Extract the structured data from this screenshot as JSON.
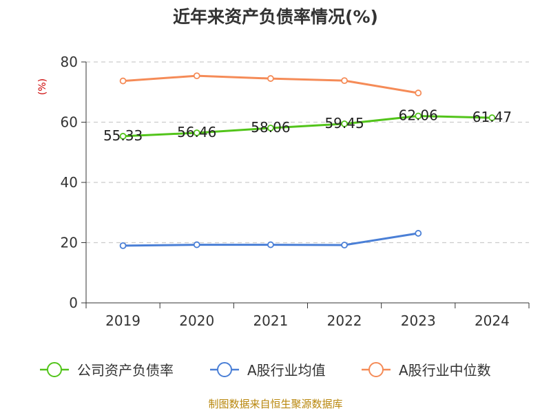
{
  "chart_data": {
    "type": "line",
    "title": "近年来资产负债率情况(%)",
    "unit_label": "(%)",
    "categories": [
      "2019",
      "2020",
      "2021",
      "2022",
      "2023",
      "2024"
    ],
    "ylim": [
      0,
      80
    ],
    "yticks": [
      0,
      20,
      40,
      60,
      80
    ],
    "grid": true,
    "legend_position": "bottom",
    "series": [
      {
        "name": "公司资产负债率",
        "color": "#52c41a",
        "values": [
          55.33,
          56.46,
          58.06,
          59.45,
          62.06,
          61.47
        ],
        "labels": [
          "55.33",
          "56.46",
          "58.06",
          "59.45",
          "62.06",
          "61.47"
        ]
      },
      {
        "name": "A股行业均值",
        "color": "#4a7fd6",
        "values": [
          19.0,
          19.3,
          19.3,
          19.2,
          23.1,
          null
        ]
      },
      {
        "name": "A股行业中位数",
        "color": "#f58b57",
        "values": [
          73.7,
          75.4,
          74.5,
          73.8,
          69.7,
          null
        ]
      }
    ],
    "source": "制图数据来自恒生聚源数据库"
  }
}
